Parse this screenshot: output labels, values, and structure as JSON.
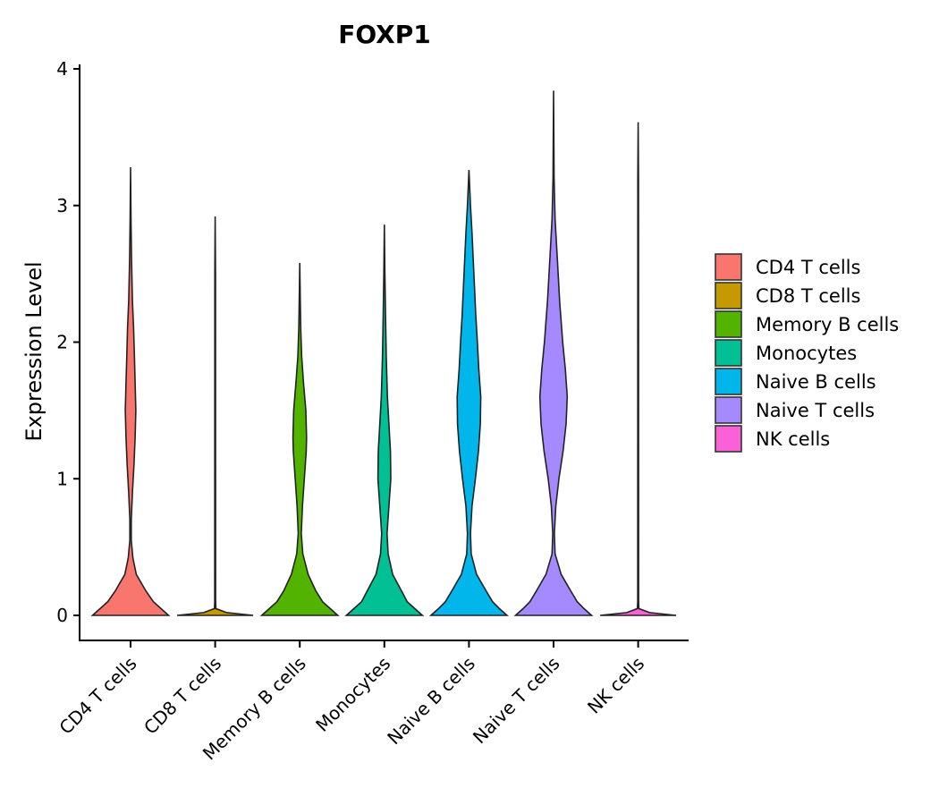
{
  "chart_data": {
    "type": "violin",
    "title": "FOXP1",
    "xlabel": "",
    "ylabel": "Expression Level",
    "ylim": [
      -0.18,
      4.05
    ],
    "yticks": [
      0,
      1,
      2,
      3,
      4
    ],
    "categories": [
      "CD4 T cells",
      "CD8 T cells",
      "Memory B cells",
      "Monocytes",
      "Naive B cells",
      "Naive T cells",
      "NK cells"
    ],
    "legend": {
      "position": "right",
      "entries": [
        "CD4 T cells",
        "CD8 T cells",
        "Memory B cells",
        "Monocytes",
        "Naive B cells",
        "Naive T cells",
        "NK cells"
      ]
    },
    "series": [
      {
        "name": "CD4 T cells",
        "color": "#F8766D",
        "max": 3.28,
        "profile": [
          [
            0,
            1.0
          ],
          [
            0.05,
            0.8
          ],
          [
            0.1,
            0.6
          ],
          [
            0.18,
            0.4
          ],
          [
            0.3,
            0.15
          ],
          [
            0.42,
            0.06
          ],
          [
            0.55,
            0.02
          ],
          [
            0.7,
            0.02
          ],
          [
            0.9,
            0.05
          ],
          [
            1.1,
            0.09
          ],
          [
            1.3,
            0.12
          ],
          [
            1.5,
            0.14
          ],
          [
            1.7,
            0.12
          ],
          [
            1.9,
            0.1
          ],
          [
            2.1,
            0.08
          ],
          [
            2.3,
            0.05
          ],
          [
            2.6,
            0.025
          ],
          [
            2.9,
            0.012
          ],
          [
            3.28,
            0.0
          ]
        ]
      },
      {
        "name": "CD8 T cells",
        "color": "#C49A00",
        "max": 2.92,
        "profile": [
          [
            0,
            1.0
          ],
          [
            0.02,
            0.3
          ],
          [
            0.05,
            0.02
          ],
          [
            0.1,
            0.012
          ],
          [
            2.5,
            0.01
          ],
          [
            2.92,
            0.0
          ]
        ]
      },
      {
        "name": "Memory B cells",
        "color": "#53B400",
        "max": 2.58,
        "profile": [
          [
            0,
            1.0
          ],
          [
            0.05,
            0.8
          ],
          [
            0.1,
            0.6
          ],
          [
            0.18,
            0.42
          ],
          [
            0.3,
            0.22
          ],
          [
            0.45,
            0.08
          ],
          [
            0.6,
            0.04
          ],
          [
            0.8,
            0.07
          ],
          [
            1.0,
            0.12
          ],
          [
            1.2,
            0.17
          ],
          [
            1.3,
            0.18
          ],
          [
            1.5,
            0.16
          ],
          [
            1.7,
            0.1
          ],
          [
            1.9,
            0.05
          ],
          [
            2.1,
            0.025
          ],
          [
            2.3,
            0.015
          ],
          [
            2.58,
            0.0
          ]
        ]
      },
      {
        "name": "Monocytes",
        "color": "#00C094",
        "max": 2.86,
        "profile": [
          [
            0,
            1.0
          ],
          [
            0.05,
            0.8
          ],
          [
            0.1,
            0.6
          ],
          [
            0.18,
            0.45
          ],
          [
            0.3,
            0.22
          ],
          [
            0.45,
            0.1
          ],
          [
            0.6,
            0.07
          ],
          [
            0.8,
            0.12
          ],
          [
            1.0,
            0.17
          ],
          [
            1.2,
            0.16
          ],
          [
            1.4,
            0.12
          ],
          [
            1.6,
            0.08
          ],
          [
            1.9,
            0.05
          ],
          [
            2.2,
            0.03
          ],
          [
            2.5,
            0.015
          ],
          [
            2.86,
            0.0
          ]
        ]
      },
      {
        "name": "Naive B cells",
        "color": "#00B6EB",
        "max": 3.26,
        "profile": [
          [
            0,
            1.0
          ],
          [
            0.05,
            0.8
          ],
          [
            0.1,
            0.62
          ],
          [
            0.18,
            0.45
          ],
          [
            0.3,
            0.2
          ],
          [
            0.45,
            0.06
          ],
          [
            0.6,
            0.04
          ],
          [
            0.8,
            0.08
          ],
          [
            1.0,
            0.17
          ],
          [
            1.2,
            0.25
          ],
          [
            1.4,
            0.3
          ],
          [
            1.6,
            0.31
          ],
          [
            1.8,
            0.26
          ],
          [
            2.0,
            0.22
          ],
          [
            2.2,
            0.18
          ],
          [
            2.5,
            0.13
          ],
          [
            2.8,
            0.08
          ],
          [
            3.0,
            0.04
          ],
          [
            3.26,
            0.0
          ]
        ]
      },
      {
        "name": "Naive T cells",
        "color": "#A58AFF",
        "max": 3.84,
        "profile": [
          [
            0,
            1.0
          ],
          [
            0.05,
            0.8
          ],
          [
            0.1,
            0.62
          ],
          [
            0.18,
            0.45
          ],
          [
            0.3,
            0.2
          ],
          [
            0.45,
            0.04
          ],
          [
            0.6,
            0.02
          ],
          [
            0.8,
            0.06
          ],
          [
            1.0,
            0.14
          ],
          [
            1.2,
            0.25
          ],
          [
            1.4,
            0.33
          ],
          [
            1.6,
            0.36
          ],
          [
            1.8,
            0.31
          ],
          [
            2.0,
            0.24
          ],
          [
            2.3,
            0.16
          ],
          [
            2.6,
            0.1
          ],
          [
            2.9,
            0.04
          ],
          [
            3.2,
            0.015
          ],
          [
            3.84,
            0.0
          ]
        ]
      },
      {
        "name": "NK cells",
        "color": "#FB61D7",
        "max": 3.61,
        "profile": [
          [
            0,
            1.0
          ],
          [
            0.02,
            0.3
          ],
          [
            0.05,
            0.02
          ],
          [
            0.1,
            0.012
          ],
          [
            3.2,
            0.01
          ],
          [
            3.61,
            0.0
          ]
        ]
      }
    ]
  }
}
